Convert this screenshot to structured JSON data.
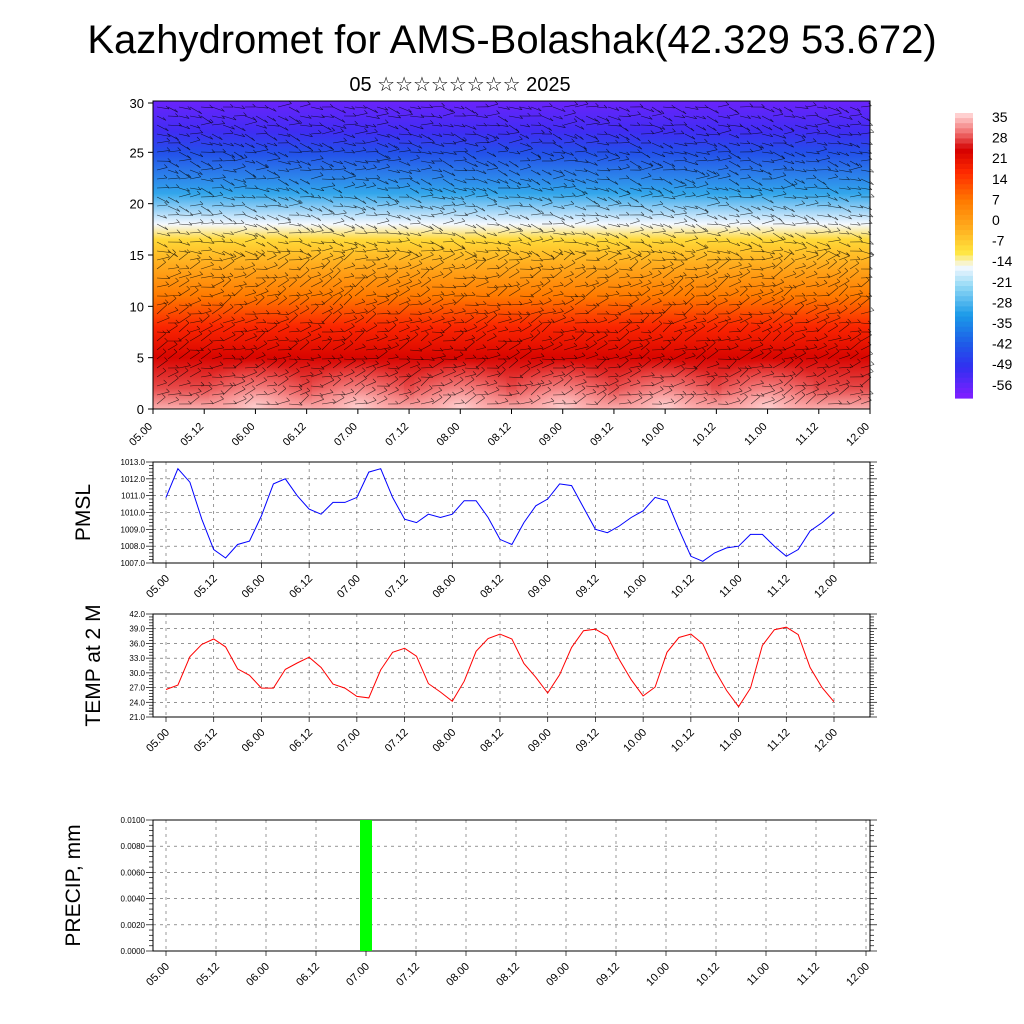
{
  "title": "Kazhydromet for AMS-Bolashak(42.329 53.672)",
  "subtitle": "05 ☆☆☆☆☆☆☆☆ 2025",
  "time_labels": [
    "05.00",
    "05.12",
    "06.00",
    "06.12",
    "07.00",
    "07.12",
    "08.00",
    "08.12",
    "09.00",
    "09.12",
    "10.00",
    "10.12",
    "11.00",
    "11.12",
    "12.00"
  ],
  "chart_data": [
    {
      "type": "heatmap",
      "name": "temperature-height section",
      "x_ticks": [
        "05.00",
        "05.12",
        "06.00",
        "06.12",
        "07.00",
        "07.12",
        "08.00",
        "08.12",
        "09.00",
        "09.12",
        "10.00",
        "10.12",
        "11.00",
        "11.12",
        "12.00"
      ],
      "y_ticks": [
        0,
        5,
        10,
        15,
        20,
        25,
        30
      ],
      "ylim": [
        0,
        30
      ],
      "colorbar_labels": [
        "35",
        "28",
        "21",
        "14",
        "7",
        "0",
        "-7",
        "-14",
        "-21",
        "-28",
        "-35",
        "-42",
        "-49",
        "-56"
      ],
      "colorbar_range": [
        -60,
        38
      ],
      "colors": [
        "#7a20ff",
        "#2a3be0",
        "#1a8fe0",
        "#78d0f0",
        "#eef5ff",
        "#ffe640",
        "#ffb020",
        "#ff7a00",
        "#ff2000",
        "#d40000",
        "#ff8a8a",
        "#ffc8c8"
      ],
      "levels_temp": [
        [
          0,
          36
        ],
        [
          2,
          30
        ],
        [
          5,
          25
        ],
        [
          8,
          19
        ],
        [
          11,
          8
        ],
        [
          14,
          -1
        ],
        [
          16.5,
          -8
        ],
        [
          18,
          -15
        ],
        [
          21,
          -30
        ],
        [
          25,
          -44
        ],
        [
          27,
          -52
        ],
        [
          31,
          -58
        ]
      ]
    },
    {
      "type": "line",
      "ylabel": "PMSL",
      "ylim": [
        1007.0,
        1013.0
      ],
      "y_ticks": [
        "1007.0",
        "1008.0",
        "1009.0",
        "1010.0",
        "1011.0",
        "1012.0",
        "1013.0"
      ],
      "x_ticks": [
        "05.00",
        "05.12",
        "06.00",
        "06.12",
        "07.00",
        "07.12",
        "08.00",
        "08.12",
        "09.00",
        "09.12",
        "10.00",
        "10.12",
        "11.00",
        "11.12",
        "12.00"
      ],
      "color": "#0000ff",
      "step_hours": 3,
      "values": [
        1010.9,
        1012.6,
        1011.8,
        1009.6,
        1007.8,
        1007.3,
        1008.1,
        1008.3,
        1009.8,
        1011.7,
        1012.0,
        1011.0,
        1010.2,
        1009.9,
        1010.6,
        1010.6,
        1010.9,
        1012.4,
        1012.6,
        1010.9,
        1009.6,
        1009.4,
        1009.9,
        1009.7,
        1009.9,
        1010.7,
        1010.7,
        1009.7,
        1008.4,
        1008.1,
        1009.4,
        1010.4,
        1010.8,
        1011.7,
        1011.6,
        1010.3,
        1009.0,
        1008.8,
        1009.2,
        1009.7,
        1010.1,
        1010.9,
        1010.7,
        1009.0,
        1007.4,
        1007.1,
        1007.6,
        1007.9,
        1008.0,
        1008.7,
        1008.7,
        1008.0,
        1007.4,
        1007.8,
        1008.9,
        1009.4,
        1010.0
      ]
    },
    {
      "type": "line",
      "ylabel": "TEMP at 2 M",
      "ylim": [
        21.0,
        42.0
      ],
      "y_ticks": [
        "21.0",
        "24.0",
        "27.0",
        "30.0",
        "33.0",
        "36.0",
        "39.0",
        "42.0"
      ],
      "x_ticks": [
        "05.00",
        "05.12",
        "06.00",
        "06.12",
        "07.00",
        "07.12",
        "08.00",
        "08.12",
        "09.00",
        "09.12",
        "10.00",
        "10.12",
        "11.00",
        "11.12",
        "12.00"
      ],
      "color": "#ff0000",
      "step_hours": 3,
      "values": [
        26.6,
        27.5,
        33.3,
        35.8,
        36.9,
        35.3,
        30.8,
        29.5,
        26.9,
        26.9,
        30.7,
        32.0,
        33.2,
        31.1,
        27.7,
        26.9,
        25.2,
        24.9,
        30.6,
        34.2,
        35.0,
        33.4,
        27.8,
        26.1,
        24.2,
        28.3,
        34.4,
        37.0,
        37.9,
        36.9,
        31.9,
        29.1,
        25.9,
        29.6,
        35.2,
        38.6,
        38.9,
        37.5,
        32.7,
        28.6,
        25.3,
        27.1,
        34.2,
        37.2,
        37.9,
        35.9,
        30.6,
        26.4,
        23.1,
        26.9,
        35.6,
        38.8,
        39.3,
        37.8,
        31.1,
        27.0,
        24.1
      ]
    },
    {
      "type": "bar",
      "ylabel": "PRECIP, mm",
      "ylim": [
        0,
        0.01
      ],
      "y_ticks": [
        "0.0000",
        "0.0020",
        "0.0040",
        "0.0060",
        "0.0080",
        "0.0100"
      ],
      "x_ticks": [
        "05.00",
        "05.12",
        "06.00",
        "06.12",
        "07.00",
        "07.12",
        "08.00",
        "08.12",
        "09.00",
        "09.12",
        "10.00",
        "10.12",
        "11.00",
        "11.12",
        "12.00"
      ],
      "color": "#00ff00",
      "bars": [
        {
          "x": "07.00",
          "value": 0.01
        }
      ]
    }
  ]
}
